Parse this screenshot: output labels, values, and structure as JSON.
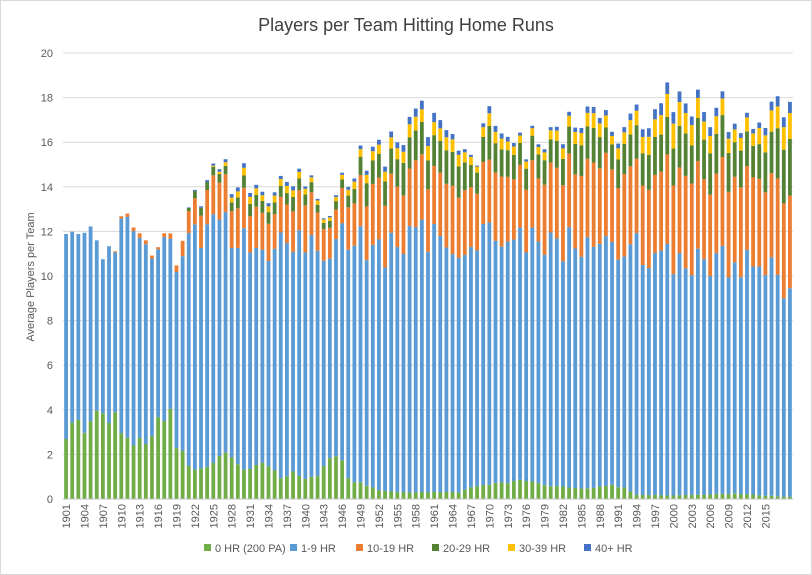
{
  "chart_data": {
    "type": "bar",
    "stacked": true,
    "title": "Players per Team Hitting Home Runs",
    "xlabel": "",
    "ylabel": "Average Players per Team",
    "ylim": [
      0,
      20
    ],
    "yticks": [
      0,
      2,
      4,
      6,
      8,
      10,
      12,
      14,
      16,
      18,
      20
    ],
    "x_tick_labels": [
      "1901",
      "1904",
      "1907",
      "1910",
      "1913",
      "1916",
      "1919",
      "1922",
      "1925",
      "1928",
      "1931",
      "1934",
      "1937",
      "1940",
      "1943",
      "1946",
      "1949",
      "1952",
      "1955",
      "1958",
      "1961",
      "1964",
      "1967",
      "1970",
      "1973",
      "1976",
      "1979",
      "1982",
      "1985",
      "1988",
      "1991",
      "1994",
      "1997",
      "2000",
      "2003",
      "2006",
      "2009",
      "2012",
      "2015"
    ],
    "grid": "horizontal",
    "legend_position": "bottom",
    "series": [
      {
        "name": "0 HR (200 PA)",
        "color": "#70ad47",
        "anchors": [
          [
            1901,
            2.5
          ],
          [
            1902,
            3.3
          ],
          [
            1903,
            3.5
          ],
          [
            1904,
            3.0
          ],
          [
            1906,
            3.8
          ],
          [
            1907,
            4.1
          ],
          [
            1908,
            3.6
          ],
          [
            1909,
            4.2
          ],
          [
            1910,
            2.9
          ],
          [
            1912,
            2.6
          ],
          [
            1913,
            2.8
          ],
          [
            1914,
            2.6
          ],
          [
            1916,
            3.5
          ],
          [
            1917,
            3.8
          ],
          [
            1918,
            4.1
          ],
          [
            1919,
            2.2
          ],
          [
            1920,
            2.0
          ],
          [
            1921,
            1.4
          ],
          [
            1924,
            1.4
          ],
          [
            1926,
            2.0
          ],
          [
            1928,
            2.0
          ],
          [
            1930,
            1.3
          ],
          [
            1933,
            1.6
          ],
          [
            1934,
            1.5
          ],
          [
            1936,
            0.9
          ],
          [
            1938,
            1.2
          ],
          [
            1940,
            0.9
          ],
          [
            1942,
            1.0
          ],
          [
            1943,
            1.6
          ],
          [
            1945,
            1.8
          ],
          [
            1946,
            1.7
          ],
          [
            1947,
            0.9
          ],
          [
            1949,
            0.7
          ],
          [
            1952,
            0.4
          ],
          [
            1956,
            0.3
          ],
          [
            1960,
            0.3
          ],
          [
            1965,
            0.3
          ],
          [
            1968,
            0.6
          ],
          [
            1972,
            0.7
          ],
          [
            1974,
            0.8
          ],
          [
            1976,
            0.8
          ],
          [
            1980,
            0.6
          ],
          [
            1984,
            0.5
          ],
          [
            1987,
            0.5
          ],
          [
            1990,
            0.6
          ],
          [
            1992,
            0.5
          ],
          [
            1994,
            0.2
          ],
          [
            2000,
            0.15
          ],
          [
            2005,
            0.2
          ],
          [
            2010,
            0.25
          ],
          [
            2015,
            0.15
          ],
          [
            2019,
            0.1
          ]
        ]
      },
      {
        "name": "1-9 HR",
        "color": "#5b9bd5",
        "anchors": [
          [
            1901,
            9.7
          ],
          [
            1902,
            8.0
          ],
          [
            1903,
            7.8
          ],
          [
            1904,
            8.9
          ],
          [
            1906,
            7.7
          ],
          [
            1907,
            7.4
          ],
          [
            1908,
            8.0
          ],
          [
            1909,
            7.5
          ],
          [
            1910,
            9.0
          ],
          [
            1912,
            9.5
          ],
          [
            1913,
            9.2
          ],
          [
            1914,
            9.3
          ],
          [
            1916,
            8.0
          ],
          [
            1917,
            7.8
          ],
          [
            1918,
            7.1
          ],
          [
            1919,
            8.4
          ],
          [
            1920,
            8.5
          ],
          [
            1921,
            10.3
          ],
          [
            1924,
            10.6
          ],
          [
            1926,
            10.2
          ],
          [
            1928,
            10.0
          ],
          [
            1930,
            10.2
          ],
          [
            1933,
            9.8
          ],
          [
            1934,
            9.8
          ],
          [
            1936,
            10.3
          ],
          [
            1938,
            10.0
          ],
          [
            1940,
            10.4
          ],
          [
            1942,
            10.2
          ],
          [
            1943,
            9.8
          ],
          [
            1945,
            9.5
          ],
          [
            1946,
            10.0
          ],
          [
            1947,
            11.1
          ],
          [
            1949,
            10.7
          ],
          [
            1952,
            10.8
          ],
          [
            1956,
            11.0
          ],
          [
            1960,
            11.5
          ],
          [
            1965,
            11.3
          ],
          [
            1968,
            11.4
          ],
          [
            1972,
            11.2
          ],
          [
            1974,
            10.7
          ],
          [
            1976,
            10.6
          ],
          [
            1980,
            10.9
          ],
          [
            1984,
            10.9
          ],
          [
            1987,
            10.8
          ],
          [
            1990,
            11.1
          ],
          [
            1992,
            10.8
          ],
          [
            1994,
            11.0
          ],
          [
            2000,
            10.7
          ],
          [
            2005,
            10.2
          ],
          [
            2010,
            10.5
          ],
          [
            2015,
            10.3
          ],
          [
            2019,
            9.4
          ]
        ]
      },
      {
        "name": "10-19 HR",
        "color": "#ed7d31",
        "anchors": [
          [
            1901,
            0.0
          ],
          [
            1908,
            0.0
          ],
          [
            1910,
            0.1
          ],
          [
            1913,
            0.2
          ],
          [
            1916,
            0.1
          ],
          [
            1919,
            0.3
          ],
          [
            1921,
            1.0
          ],
          [
            1924,
            1.6
          ],
          [
            1926,
            1.8
          ],
          [
            1928,
            1.6
          ],
          [
            1930,
            1.8
          ],
          [
            1933,
            1.7
          ],
          [
            1936,
            1.6
          ],
          [
            1938,
            1.8
          ],
          [
            1940,
            2.0
          ],
          [
            1943,
            1.5
          ],
          [
            1945,
            1.4
          ],
          [
            1947,
            1.8
          ],
          [
            1950,
            2.5
          ],
          [
            1953,
            2.6
          ],
          [
            1956,
            2.7
          ],
          [
            1958,
            2.9
          ],
          [
            1962,
            2.8
          ],
          [
            1965,
            2.9
          ],
          [
            1968,
            2.5
          ],
          [
            1970,
            2.9
          ],
          [
            1973,
            3.0
          ],
          [
            1976,
            2.8
          ],
          [
            1980,
            3.1
          ],
          [
            1984,
            3.4
          ],
          [
            1987,
            3.7
          ],
          [
            1990,
            3.4
          ],
          [
            1994,
            3.5
          ],
          [
            1998,
            3.8
          ],
          [
            2003,
            4.0
          ],
          [
            2006,
            3.8
          ],
          [
            2010,
            3.9
          ],
          [
            2013,
            3.8
          ],
          [
            2016,
            4.0
          ],
          [
            2019,
            4.1
          ]
        ]
      },
      {
        "name": "20-29 HR",
        "color": "#548235",
        "anchors": [
          [
            1901,
            0.0
          ],
          [
            1920,
            0.0
          ],
          [
            1922,
            0.3
          ],
          [
            1925,
            0.4
          ],
          [
            1928,
            0.4
          ],
          [
            1930,
            0.6
          ],
          [
            1933,
            0.5
          ],
          [
            1936,
            0.5
          ],
          [
            1938,
            0.6
          ],
          [
            1940,
            0.5
          ],
          [
            1943,
            0.3
          ],
          [
            1946,
            0.4
          ],
          [
            1948,
            0.7
          ],
          [
            1950,
            1.0
          ],
          [
            1953,
            1.1
          ],
          [
            1956,
            1.4
          ],
          [
            1958,
            1.3
          ],
          [
            1962,
            1.5
          ],
          [
            1965,
            1.4
          ],
          [
            1968,
            0.9
          ],
          [
            1970,
            1.5
          ],
          [
            1973,
            1.2
          ],
          [
            1976,
            1.0
          ],
          [
            1980,
            1.1
          ],
          [
            1984,
            1.3
          ],
          [
            1987,
            1.5
          ],
          [
            1990,
            1.1
          ],
          [
            1994,
            1.5
          ],
          [
            1998,
            1.8
          ],
          [
            2003,
            1.8
          ],
          [
            2006,
            1.9
          ],
          [
            2010,
            1.6
          ],
          [
            2013,
            1.5
          ],
          [
            2016,
            2.0
          ],
          [
            2019,
            2.4
          ]
        ]
      },
      {
        "name": "30-39 HR",
        "color": "#ffc000",
        "anchors": [
          [
            1901,
            0.0
          ],
          [
            1924,
            0.0
          ],
          [
            1927,
            0.15
          ],
          [
            1930,
            0.35
          ],
          [
            1933,
            0.25
          ],
          [
            1936,
            0.3
          ],
          [
            1938,
            0.3
          ],
          [
            1940,
            0.25
          ],
          [
            1943,
            0.15
          ],
          [
            1946,
            0.2
          ],
          [
            1950,
            0.4
          ],
          [
            1953,
            0.45
          ],
          [
            1956,
            0.5
          ],
          [
            1958,
            0.6
          ],
          [
            1962,
            0.6
          ],
          [
            1965,
            0.5
          ],
          [
            1968,
            0.25
          ],
          [
            1970,
            0.6
          ],
          [
            1973,
            0.4
          ],
          [
            1976,
            0.3
          ],
          [
            1980,
            0.4
          ],
          [
            1984,
            0.5
          ],
          [
            1987,
            0.7
          ],
          [
            1990,
            0.4
          ],
          [
            1994,
            0.7
          ],
          [
            1998,
            0.9
          ],
          [
            2000,
            1.1
          ],
          [
            2003,
            0.9
          ],
          [
            2006,
            0.8
          ],
          [
            2010,
            0.6
          ],
          [
            2013,
            0.6
          ],
          [
            2016,
            0.9
          ],
          [
            2019,
            1.1
          ]
        ]
      },
      {
        "name": "40+ HR",
        "color": "#4472c4",
        "anchors": [
          [
            1901,
            0.0
          ],
          [
            1920,
            0.0
          ],
          [
            1922,
            0.05
          ],
          [
            1925,
            0.1
          ],
          [
            1928,
            0.15
          ],
          [
            1930,
            0.2
          ],
          [
            1933,
            0.15
          ],
          [
            1936,
            0.15
          ],
          [
            1938,
            0.2
          ],
          [
            1940,
            0.1
          ],
          [
            1943,
            0.05
          ],
          [
            1946,
            0.1
          ],
          [
            1950,
            0.2
          ],
          [
            1953,
            0.25
          ],
          [
            1956,
            0.3
          ],
          [
            1958,
            0.35
          ],
          [
            1961,
            0.4
          ],
          [
            1964,
            0.25
          ],
          [
            1968,
            0.05
          ],
          [
            1970,
            0.3
          ],
          [
            1973,
            0.2
          ],
          [
            1976,
            0.1
          ],
          [
            1980,
            0.15
          ],
          [
            1984,
            0.2
          ],
          [
            1987,
            0.3
          ],
          [
            1990,
            0.2
          ],
          [
            1994,
            0.3
          ],
          [
            1998,
            0.5
          ],
          [
            2000,
            0.5
          ],
          [
            2003,
            0.4
          ],
          [
            2006,
            0.4
          ],
          [
            2010,
            0.25
          ],
          [
            2013,
            0.2
          ],
          [
            2016,
            0.4
          ],
          [
            2019,
            0.5
          ]
        ]
      }
    ],
    "x_start": 1901,
    "x_end": 2019
  }
}
